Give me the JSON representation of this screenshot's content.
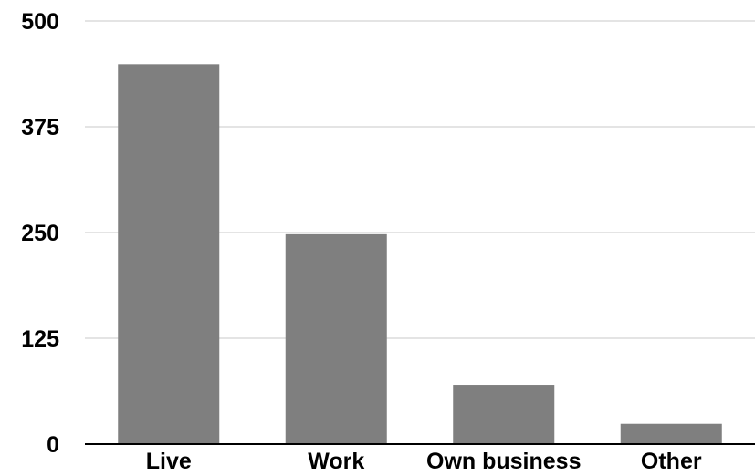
{
  "chart_data": {
    "type": "bar",
    "categories": [
      "Live",
      "Work",
      "Own business",
      "Other"
    ],
    "values": [
      449,
      248,
      70,
      24
    ],
    "ylim": [
      0,
      500
    ],
    "yticks": [
      0,
      125,
      250,
      375,
      500
    ],
    "ytick_labels": [
      "0",
      "125",
      "250",
      "375",
      "500"
    ],
    "grid": true,
    "legend": "none",
    "title": "",
    "xlabel": "",
    "ylabel": "",
    "colors": {
      "bar": "#7f7f7f",
      "grid": "#c8c8c8",
      "axis": "#000000",
      "text": "#000000"
    }
  }
}
